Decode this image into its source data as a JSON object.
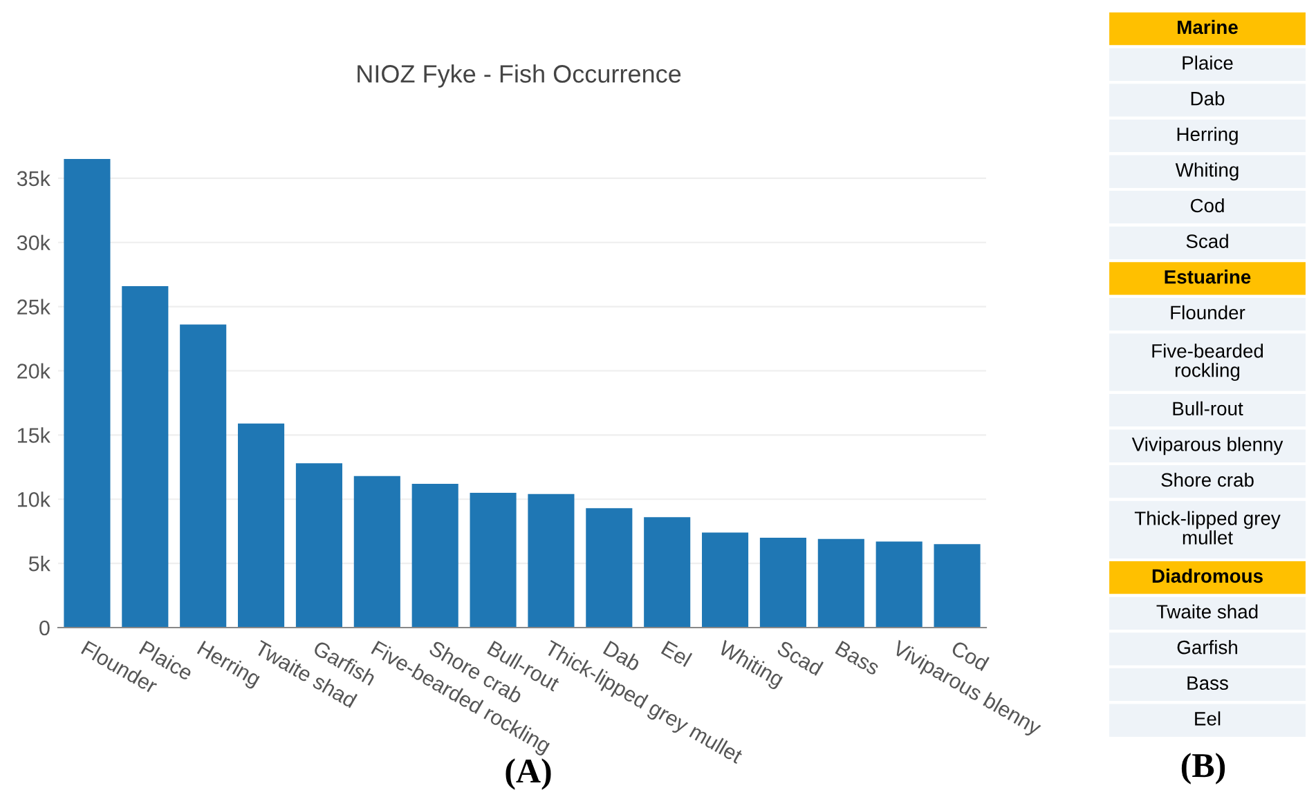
{
  "chart_data": [
    {
      "type": "bar",
      "title": "NIOZ Fyke - Fish Occurrence",
      "categories": [
        "Flounder",
        "Plaice",
        "Herring",
        "Twaite shad",
        "Garfish",
        "Five-bearded rockling",
        "Shore crab",
        "Bull-rout",
        "Thick-lipped grey mullet",
        "Dab",
        "Eel",
        "Whiting",
        "Scad",
        "Bass",
        "Viviparous blenny",
        "Cod"
      ],
      "values": [
        36500,
        26600,
        23600,
        15900,
        12800,
        11800,
        11200,
        10500,
        10400,
        9300,
        8600,
        7400,
        7000,
        6900,
        6700,
        6500
      ],
      "color": "#1f77b4",
      "ylim": [
        0,
        36500
      ],
      "yticks": [
        0,
        {
          "value": 5000,
          "label": "5k"
        },
        {
          "value": 10000,
          "label": "10k"
        },
        {
          "value": 15000,
          "label": "15k"
        },
        {
          "value": 20000,
          "label": "20k"
        },
        {
          "value": 25000,
          "label": "25k"
        },
        {
          "value": 30000,
          "label": "30k"
        },
        {
          "value": 35000,
          "label": "35k"
        }
      ],
      "grid": "y",
      "annotations": [
        "(A)"
      ]
    },
    {
      "type": "other",
      "categories": [
        "Marine",
        "Plaice",
        "Dab",
        "Herring",
        "Whiting",
        "Cod",
        "Scad",
        "Estuarine",
        "Flounder",
        "Five-bearded\nrockling",
        "Bull-rout",
        "Viviparous blenny",
        "Shore crab",
        "Thick-lipped grey\nmullet",
        "Diadromous",
        "Twaite shad",
        "Garfish",
        "Bass",
        "Eel"
      ],
      "colors": [
        "#ffc000",
        "#eef3f8",
        "#eef3f8",
        "#eef3f8",
        "#eef3f8",
        "#eef3f8",
        "#eef3f8",
        "#ffc000",
        "#eef3f8",
        "#eef3f8",
        "#eef3f8",
        "#eef3f8",
        "#eef3f8",
        "#eef3f8",
        "#ffc000",
        "#eef3f8",
        "#eef3f8",
        "#eef3f8",
        "#eef3f8"
      ],
      "annotations": [
        "(B)"
      ]
    }
  ]
}
